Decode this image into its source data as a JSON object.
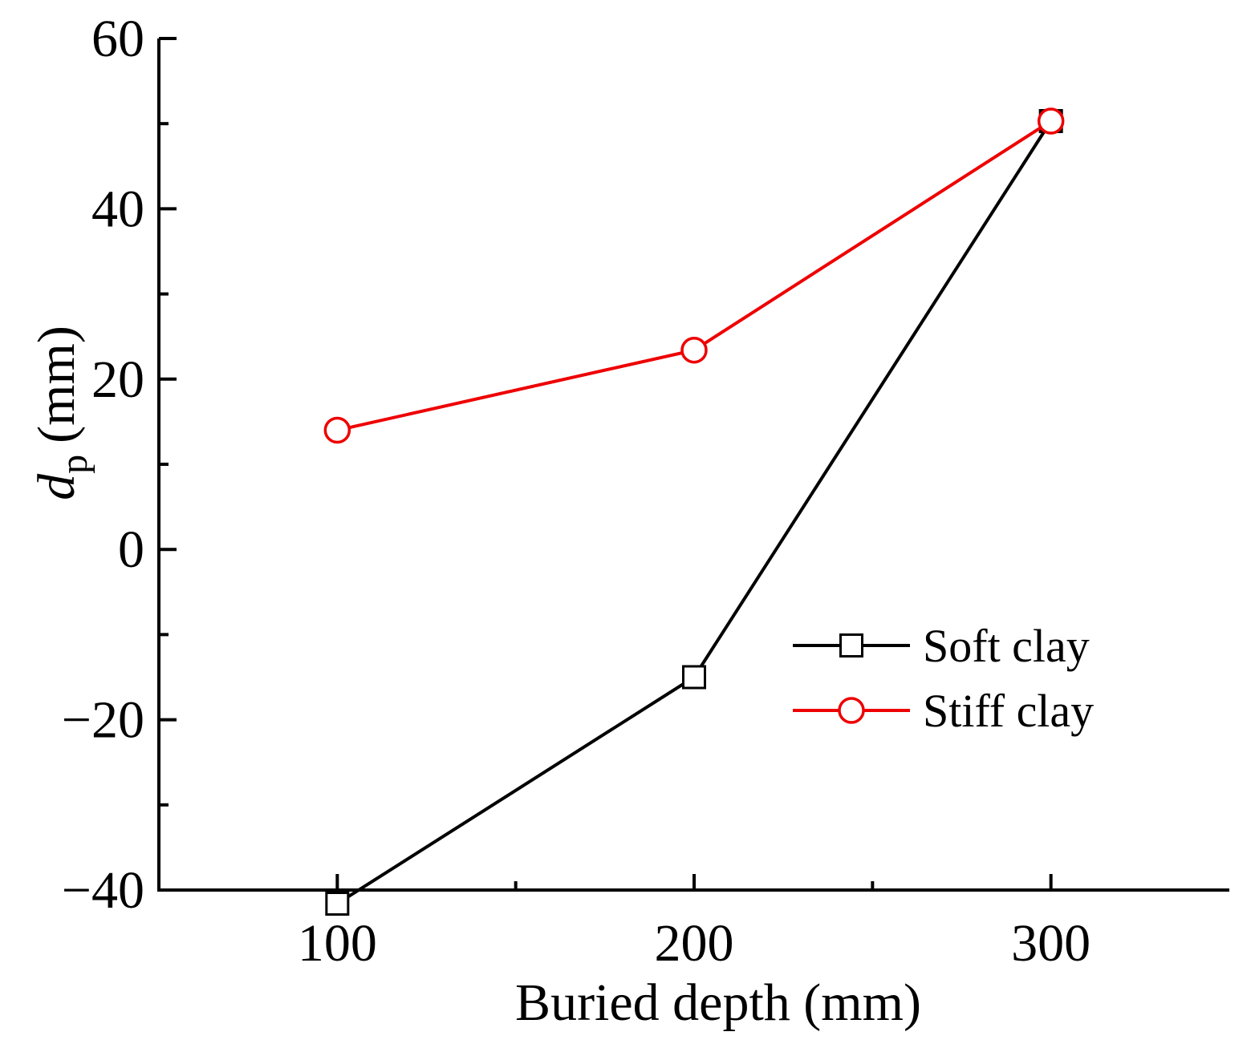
{
  "chart_data": {
    "type": "line",
    "title": "",
    "xlabel": "Buried depth (mm)",
    "ylabel": {
      "main": "d",
      "sub": "p",
      "unit": "(mm)"
    },
    "xlim": [
      50,
      350
    ],
    "ylim": [
      -40,
      60
    ],
    "xticks": [
      100,
      200,
      300
    ],
    "xtick_labels": [
      "100",
      "200",
      "300"
    ],
    "x_minor_ticks": [
      150,
      250
    ],
    "yticks": [
      -40,
      -20,
      0,
      20,
      40,
      60
    ],
    "ytick_labels": [
      "−40",
      "−20",
      "0",
      "20",
      "40",
      "60"
    ],
    "y_minor_ticks": [
      -30,
      -10,
      10,
      30,
      50
    ],
    "grid": false,
    "legend_position": "lower-right",
    "series": [
      {
        "name": "Soft clay",
        "color": "#000000",
        "marker": "square",
        "x": [
          100,
          200,
          300
        ],
        "y": [
          -41.6,
          -15,
          50.3
        ]
      },
      {
        "name": "Stiff clay",
        "color": "#ee0000",
        "marker": "circle",
        "x": [
          100,
          200,
          300
        ],
        "y": [
          14,
          23.4,
          50.3
        ]
      }
    ]
  }
}
